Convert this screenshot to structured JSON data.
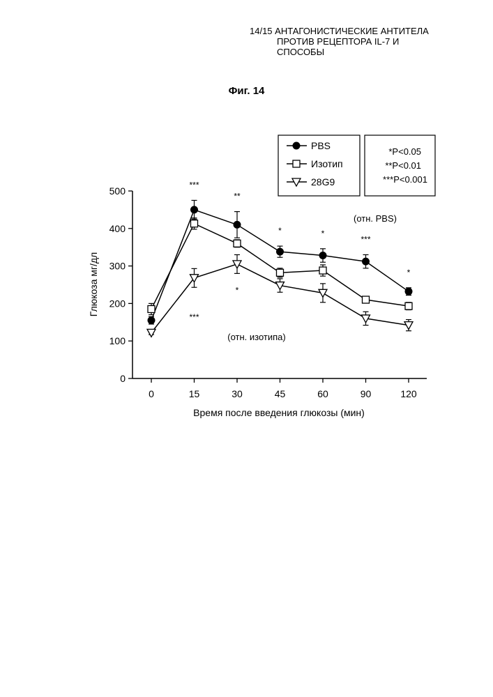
{
  "header": {
    "line1": "14/15 АНТАГОНИСТИЧЕСКИЕ АНТИТЕЛА",
    "line2": "ПРОТИВ РЕЦЕПТОРА IL-7 И",
    "line3": "СПОСОБЫ"
  },
  "figure_label": "Фиг. 14",
  "significance_legend": [
    "*P<0.05",
    "**P<0.01",
    "***P<0.001"
  ],
  "annotations": {
    "vs_pbs": "(отн. PBS)",
    "vs_isotype": "(отн. изотипа)"
  },
  "chart_data": {
    "type": "line",
    "title": "",
    "xlabel": "Время после введения глюкозы (мин)",
    "ylabel": "Глюкоза мг/дл",
    "categories": [
      "0",
      "15",
      "30",
      "45",
      "60",
      "90",
      "120"
    ],
    "ylim": [
      0,
      500
    ],
    "yticks": [
      0,
      100,
      200,
      300,
      400,
      500
    ],
    "grid": false,
    "legend_position": "top-center",
    "series": [
      {
        "name": "PBS",
        "marker": "filled-circle",
        "values": [
          155,
          450,
          410,
          338,
          328,
          312,
          232
        ],
        "errors": [
          10,
          25,
          35,
          15,
          18,
          18,
          10
        ]
      },
      {
        "name": "Изотип",
        "marker": "open-square",
        "values": [
          185,
          413,
          360,
          282,
          288,
          210,
          193
        ],
        "errors": [
          15,
          15,
          10,
          12,
          15,
          6,
          10
        ]
      },
      {
        "name": "28G9",
        "marker": "open-triangle-down",
        "values": [
          122,
          268,
          305,
          248,
          228,
          160,
          142
        ],
        "errors": [
          5,
          25,
          25,
          18,
          25,
          18,
          15
        ]
      }
    ],
    "significance_vs_pbs": [
      "",
      "***",
      "**",
      "*",
      "*",
      "***",
      "*"
    ],
    "significance_vs_isotype": [
      "",
      "***",
      "*",
      "",
      "",
      "",
      ""
    ]
  }
}
